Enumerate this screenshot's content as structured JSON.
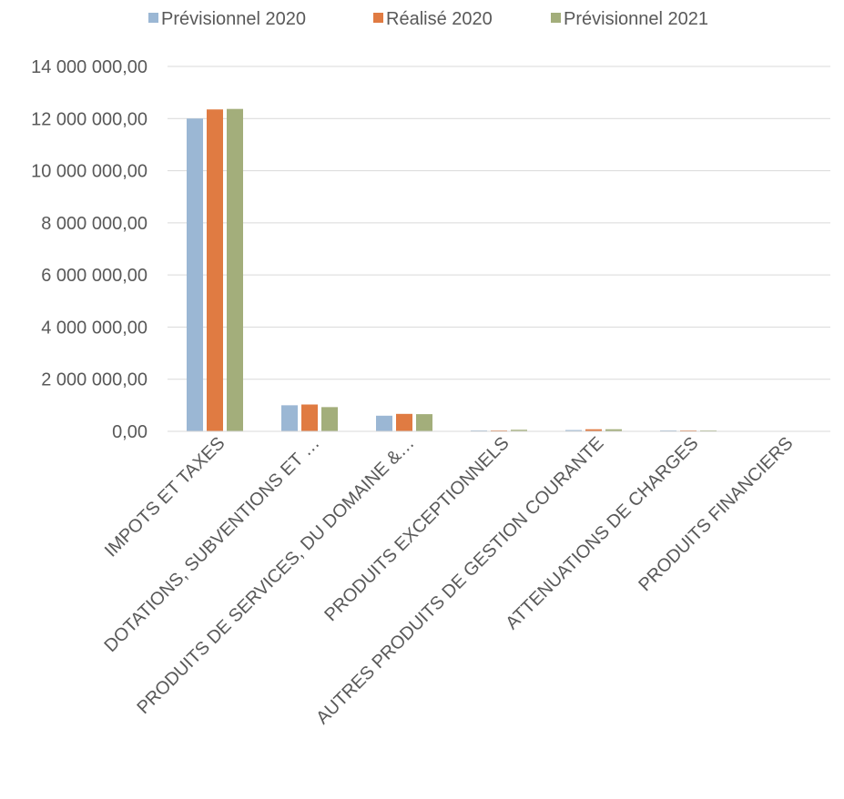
{
  "chart_data": {
    "type": "bar",
    "categories": [
      "IMPOTS ET TAXES",
      "DOTATIONS, SUBVENTIONS ET …",
      "PRODUITS DE SERVICES, DU DOMAINE &…",
      "PRODUITS EXCEPTIONNELS",
      "AUTRES PRODUITS DE GESTION COURANTE",
      "ATTENUATIONS DE CHARGES",
      "PRODUITS FINANCIERS"
    ],
    "series": [
      {
        "name": "Prévisionnel 2020",
        "color": "#9BB7D4",
        "values": [
          12000000,
          1000000,
          600000,
          20000,
          50000,
          30000,
          0
        ]
      },
      {
        "name": "Réalisé 2020",
        "color": "#E07B42",
        "values": [
          12350000,
          1030000,
          670000,
          30000,
          80000,
          35000,
          0
        ]
      },
      {
        "name": "Prévisionnel 2021",
        "color": "#A3AE7B",
        "values": [
          12370000,
          930000,
          660000,
          60000,
          80000,
          35000,
          0
        ]
      }
    ],
    "ylim": [
      0,
      14000000
    ],
    "yticks": [
      0,
      2000000,
      4000000,
      6000000,
      8000000,
      10000000,
      12000000,
      14000000
    ],
    "ytick_labels": [
      "0,00",
      "2 000 000,00",
      "4 000 000,00",
      "6 000 000,00",
      "8 000 000,00",
      "10 000 000,00",
      "12 000 000,00",
      "14 000 000,00"
    ],
    "grid": true,
    "legend_position": "top",
    "gridline_color": "#D9D9D9"
  }
}
